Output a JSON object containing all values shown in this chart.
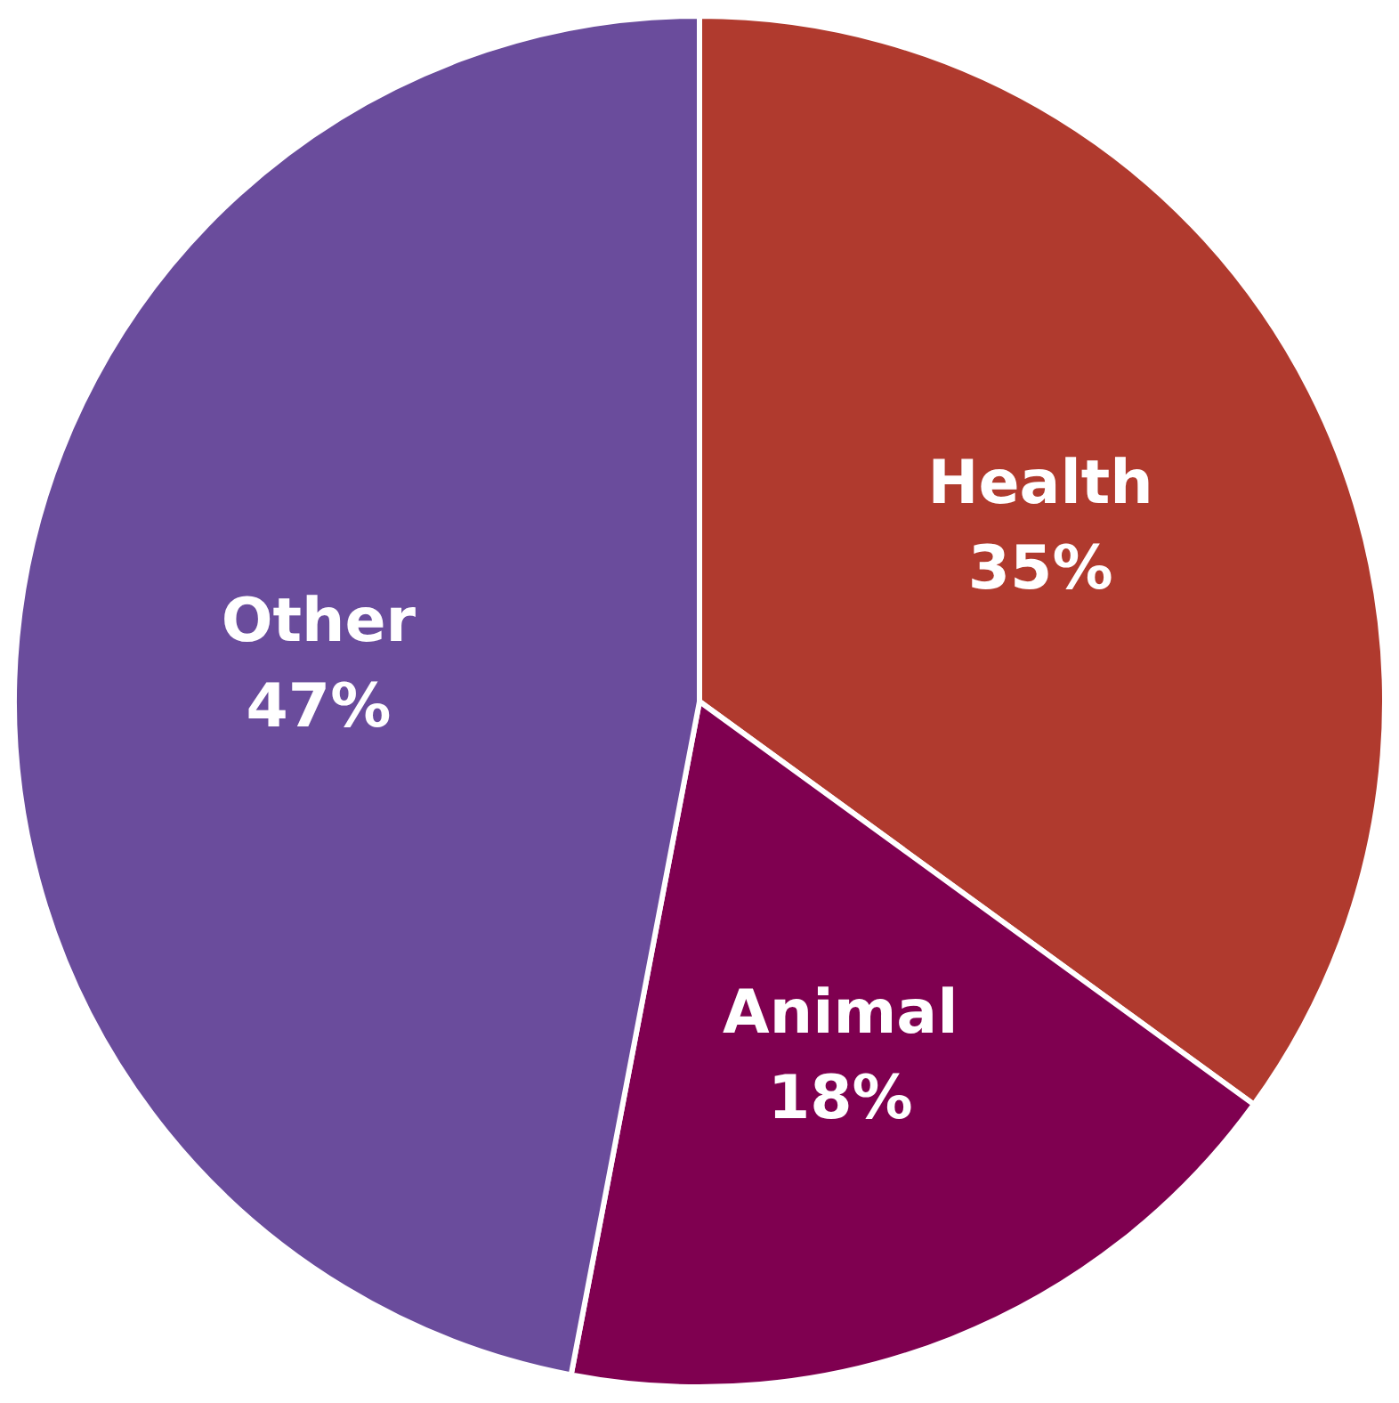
{
  "chart_data": {
    "type": "pie",
    "categories": [
      "Health",
      "Animal",
      "Other"
    ],
    "values": [
      35,
      18,
      47
    ],
    "colors": [
      "#b03a2e",
      "#7f0050",
      "#6a4c9c"
    ],
    "value_labels": [
      "35%",
      "18%",
      "47%"
    ]
  }
}
